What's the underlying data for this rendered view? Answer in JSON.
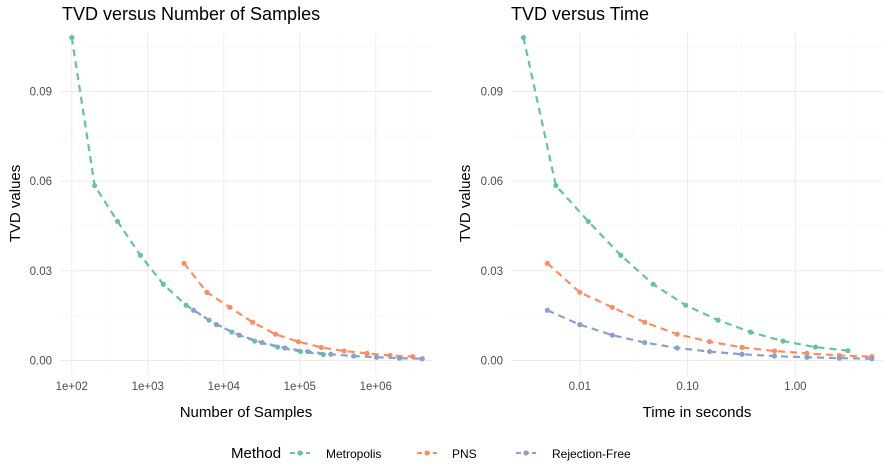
{
  "colors": {
    "Metropolis": "#66c2a5",
    "PNS": "#fc8d62",
    "Rejection-Free": "#8da0cb",
    "grid_major": "#ebebeb",
    "grid_minor": "#f5f5f5",
    "tick_text": "#4d4d4d"
  },
  "legend": {
    "title": "Method",
    "placement": "bottom",
    "items": [
      "Metropolis",
      "PNS",
      "Rejection-Free"
    ]
  },
  "chart_data": [
    {
      "type": "line",
      "title": "TVD versus Number of Samples",
      "xlabel": "Number of Samples",
      "ylabel": "TVD values",
      "xscale": "log10",
      "xlim": [
        70,
        5500000
      ],
      "ylim": [
        -0.0045,
        0.1095
      ],
      "xticks": [
        100,
        1000,
        10000,
        100000,
        1000000
      ],
      "xtick_labels": [
        "1e+02",
        "1e+03",
        "1e+04",
        "1e+05",
        "1e+06"
      ],
      "yticks": [
        0.0,
        0.03,
        0.06,
        0.09
      ],
      "ytick_labels": [
        "0.00",
        "0.03",
        "0.06",
        "0.09"
      ],
      "grid": true,
      "line_style": "dashed",
      "series": [
        {
          "name": "Metropolis",
          "x": [
            100,
            200,
            400,
            800,
            1600,
            3200,
            6400,
            12800,
            25600,
            51200,
            102400,
            204800
          ],
          "y": [
            0.108,
            0.0585,
            0.0465,
            0.0352,
            0.0255,
            0.0185,
            0.0135,
            0.0095,
            0.0065,
            0.0045,
            0.003,
            0.002
          ]
        },
        {
          "name": "PNS",
          "x": [
            3000,
            6000,
            12000,
            24000,
            48000,
            96000,
            192000,
            384000,
            768000,
            1536000,
            3072000
          ],
          "y": [
            0.0325,
            0.0228,
            0.0178,
            0.0128,
            0.0088,
            0.0063,
            0.0044,
            0.0032,
            0.0024,
            0.0017,
            0.0013
          ]
        },
        {
          "name": "Rejection-Free",
          "x": [
            4000,
            8000,
            16000,
            32000,
            64000,
            128000,
            256000,
            512000,
            1024000,
            2048000,
            4096000
          ],
          "y": [
            0.0168,
            0.012,
            0.0085,
            0.006,
            0.0042,
            0.003,
            0.0021,
            0.0015,
            0.0011,
            0.0008,
            0.0006
          ]
        }
      ]
    },
    {
      "type": "line",
      "title": "TVD versus Time",
      "xlabel": "Time in seconds",
      "ylabel": "TVD values",
      "xscale": "log10",
      "xlim": [
        0.0023,
        6.5
      ],
      "ylim": [
        -0.0045,
        0.1095
      ],
      "xticks": [
        0.01,
        0.1,
        1.0
      ],
      "xtick_labels": [
        "0.01",
        "0.10",
        "1.00"
      ],
      "yticks": [
        0.0,
        0.03,
        0.06,
        0.09
      ],
      "ytick_labels": [
        "0.00",
        "0.03",
        "0.06",
        "0.09"
      ],
      "grid": true,
      "line_style": "dashed",
      "series": [
        {
          "name": "Metropolis",
          "x": [
            0.003,
            0.006,
            0.012,
            0.024,
            0.048,
            0.096,
            0.192,
            0.384,
            0.768,
            1.536,
            3.072
          ],
          "y": [
            0.108,
            0.0585,
            0.0465,
            0.0352,
            0.0255,
            0.0185,
            0.0135,
            0.0095,
            0.0065,
            0.0045,
            0.0033
          ]
        },
        {
          "name": "PNS",
          "x": [
            0.005,
            0.01,
            0.02,
            0.04,
            0.08,
            0.16,
            0.32,
            0.64,
            1.28,
            2.56,
            5.12
          ],
          "y": [
            0.0325,
            0.0228,
            0.0178,
            0.0128,
            0.0088,
            0.0063,
            0.0044,
            0.0032,
            0.0024,
            0.0017,
            0.0013
          ]
        },
        {
          "name": "Rejection-Free",
          "x": [
            0.005,
            0.01,
            0.02,
            0.04,
            0.08,
            0.16,
            0.32,
            0.64,
            1.28,
            2.56,
            5.12
          ],
          "y": [
            0.0168,
            0.012,
            0.0085,
            0.006,
            0.0042,
            0.003,
            0.0021,
            0.0015,
            0.0011,
            0.0008,
            0.0006
          ]
        }
      ]
    }
  ]
}
